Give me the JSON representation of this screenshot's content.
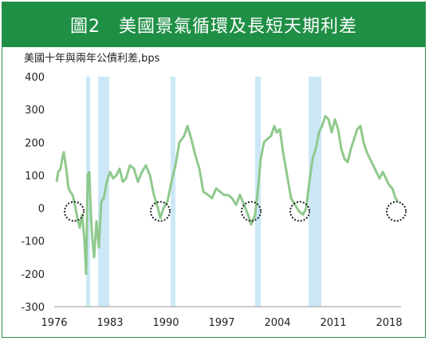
{
  "header": {
    "title": "圖2　美國景氣循環及長短天期利差"
  },
  "chart_data": {
    "type": "line",
    "title": "圖2　美國景氣循環及長短天期利差",
    "ylabel": "美國十年與兩年公債利差,bps",
    "xlabel": "",
    "ylim": [
      -300,
      400
    ],
    "xlim": [
      1976,
      2019.5
    ],
    "y_ticks": [
      -300,
      -200,
      -100,
      0,
      100,
      200,
      300,
      400
    ],
    "x_ticks": [
      1976,
      1983,
      1990,
      1997,
      2004,
      2011,
      2018
    ],
    "grid": false,
    "line_color": "#8fc98d",
    "recession_color": "#cce8f7",
    "recessions": [
      {
        "start": 1980.0,
        "end": 1980.5
      },
      {
        "start": 1981.5,
        "end": 1982.9
      },
      {
        "start": 1990.6,
        "end": 1991.2
      },
      {
        "start": 2001.2,
        "end": 2001.9
      },
      {
        "start": 2007.9,
        "end": 2009.5
      }
    ],
    "highlighted_inversions": [
      1978.5,
      1989.3,
      2000.7,
      2006.8,
      2018.9
    ],
    "series": [
      {
        "values": [
          [
            1976.3,
            80
          ],
          [
            1976.5,
            110
          ],
          [
            1976.8,
            120
          ],
          [
            1977.0,
            150
          ],
          [
            1977.2,
            170
          ],
          [
            1977.5,
            120
          ],
          [
            1977.8,
            60
          ],
          [
            1978.0,
            50
          ],
          [
            1978.3,
            40
          ],
          [
            1978.6,
            10
          ],
          [
            1978.9,
            -30
          ],
          [
            1979.2,
            -60
          ],
          [
            1979.5,
            -20
          ],
          [
            1979.8,
            -100
          ],
          [
            1980.0,
            -200
          ],
          [
            1980.2,
            100
          ],
          [
            1980.4,
            110
          ],
          [
            1980.6,
            -20
          ],
          [
            1980.8,
            -100
          ],
          [
            1981.0,
            -150
          ],
          [
            1981.3,
            -40
          ],
          [
            1981.6,
            -120
          ],
          [
            1981.9,
            20
          ],
          [
            1982.2,
            30
          ],
          [
            1982.6,
            80
          ],
          [
            1983.0,
            110
          ],
          [
            1983.4,
            90
          ],
          [
            1983.8,
            100
          ],
          [
            1984.2,
            120
          ],
          [
            1984.6,
            80
          ],
          [
            1985.0,
            90
          ],
          [
            1985.5,
            130
          ],
          [
            1986.0,
            120
          ],
          [
            1986.5,
            80
          ],
          [
            1987.0,
            110
          ],
          [
            1987.5,
            130
          ],
          [
            1988.0,
            100
          ],
          [
            1988.5,
            40
          ],
          [
            1989.0,
            0
          ],
          [
            1989.3,
            -30
          ],
          [
            1989.7,
            0
          ],
          [
            1990.2,
            20
          ],
          [
            1990.7,
            80
          ],
          [
            1991.2,
            130
          ],
          [
            1991.7,
            200
          ],
          [
            1992.3,
            220
          ],
          [
            1992.7,
            250
          ],
          [
            1993.2,
            210
          ],
          [
            1993.7,
            160
          ],
          [
            1994.2,
            120
          ],
          [
            1994.7,
            50
          ],
          [
            1995.3,
            40
          ],
          [
            1995.8,
            30
          ],
          [
            1996.3,
            60
          ],
          [
            1996.8,
            50
          ],
          [
            1997.3,
            40
          ],
          [
            1997.8,
            40
          ],
          [
            1998.3,
            30
          ],
          [
            1998.8,
            10
          ],
          [
            1999.3,
            40
          ],
          [
            1999.8,
            10
          ],
          [
            2000.3,
            -20
          ],
          [
            2000.7,
            -50
          ],
          [
            2001.2,
            -20
          ],
          [
            2001.6,
            70
          ],
          [
            2001.9,
            150
          ],
          [
            2002.3,
            200
          ],
          [
            2002.7,
            210
          ],
          [
            2003.2,
            220
          ],
          [
            2003.6,
            250
          ],
          [
            2003.9,
            230
          ],
          [
            2004.3,
            240
          ],
          [
            2004.7,
            170
          ],
          [
            2005.2,
            100
          ],
          [
            2005.7,
            30
          ],
          [
            2006.2,
            10
          ],
          [
            2006.7,
            -10
          ],
          [
            2007.2,
            -20
          ],
          [
            2007.6,
            0
          ],
          [
            2008.0,
            80
          ],
          [
            2008.4,
            150
          ],
          [
            2008.8,
            180
          ],
          [
            2009.2,
            230
          ],
          [
            2009.6,
            250
          ],
          [
            2010.0,
            280
          ],
          [
            2010.4,
            270
          ],
          [
            2010.8,
            230
          ],
          [
            2011.2,
            270
          ],
          [
            2011.6,
            240
          ],
          [
            2012.0,
            180
          ],
          [
            2012.4,
            150
          ],
          [
            2012.8,
            140
          ],
          [
            2013.2,
            180
          ],
          [
            2013.6,
            210
          ],
          [
            2014.0,
            240
          ],
          [
            2014.4,
            250
          ],
          [
            2014.8,
            200
          ],
          [
            2015.2,
            170
          ],
          [
            2015.6,
            150
          ],
          [
            2016.0,
            130
          ],
          [
            2016.4,
            110
          ],
          [
            2016.8,
            90
          ],
          [
            2017.2,
            110
          ],
          [
            2017.6,
            90
          ],
          [
            2018.0,
            70
          ],
          [
            2018.4,
            60
          ],
          [
            2018.8,
            30
          ],
          [
            2019.1,
            20
          ]
        ]
      }
    ]
  }
}
